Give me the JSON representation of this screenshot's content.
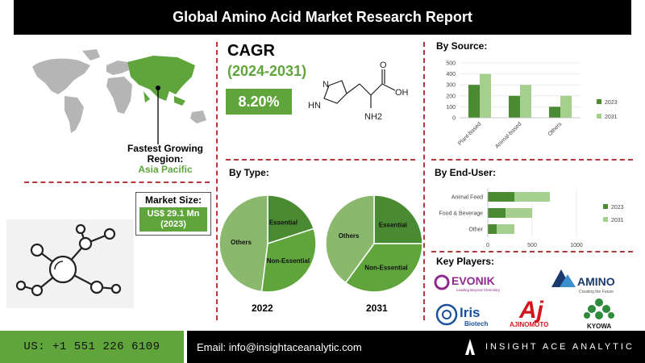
{
  "title": "Global Amino Acid Market Research Report",
  "region": {
    "label": "Fastest Growing Region:",
    "value": "Asia Pacific"
  },
  "market_size": {
    "label": "Market Size:",
    "value": "US$ 29.1 Mn (2023)"
  },
  "cagr": {
    "title": "CAGR",
    "period": "(2024-2031)",
    "value": "8.20%"
  },
  "molecule": {
    "nh": "HN",
    "n": "N",
    "oh": "OH",
    "o": "O",
    "nh2": "NH2"
  },
  "by_type": {
    "title": "By Type:",
    "years": [
      "2022",
      "2031"
    ],
    "labels": {
      "essential": "Essential",
      "non_essential": "Non-Essential",
      "others": "Others"
    }
  },
  "by_source": {
    "title": "By Source:",
    "categories": [
      "Plant-based",
      "Animal-based",
      "Others"
    ],
    "yticks": [
      "500",
      "400",
      "300",
      "200",
      "100",
      "0"
    ],
    "legend": [
      "2023",
      "2031"
    ]
  },
  "by_end_user": {
    "title": "By End-User:",
    "categories": [
      "Animal Feed",
      "Food & Beverage",
      "Other"
    ],
    "xticks": [
      "0",
      "500",
      "1000"
    ],
    "legend": [
      "2023",
      "2031"
    ]
  },
  "key_players": {
    "title": "Key Players:",
    "evonik": "EVONIK",
    "evonik_tag": "Leading Beyond Chemistry",
    "amino": "AMINO",
    "amino_tag": "Creating the Future",
    "iris": "Iris",
    "iris_sub": "Biotech",
    "ajinomoto": "AJINOMOTO",
    "kyowa": "KYOWA"
  },
  "footer": {
    "phone": "US: +1 551 226 6109",
    "email": "Email: info@insightaceanalytic.com",
    "brand": "INSIGHT ACE ANALYTIC"
  },
  "colors": {
    "accent": "#5fa53c",
    "dark_green": "#4a8a32",
    "light_green": "#a5cf8c",
    "pie_light": "#8ab96e",
    "divider": "#b33a3a"
  },
  "chart_data": [
    {
      "type": "bar",
      "title": "By Source:",
      "categories": [
        "Plant-based",
        "Animal-based",
        "Others"
      ],
      "series": [
        {
          "name": "2023",
          "values": [
            300,
            200,
            100
          ]
        },
        {
          "name": "2031",
          "values": [
            400,
            300,
            200
          ]
        }
      ],
      "ylim": [
        0,
        500
      ],
      "legend": "right"
    },
    {
      "type": "bar",
      "orientation": "horizontal",
      "stacked": true,
      "title": "By End-User:",
      "categories": [
        "Animal Feed",
        "Food & Beverage",
        "Other"
      ],
      "series": [
        {
          "name": "2023",
          "values": [
            300,
            200,
            100
          ]
        },
        {
          "name": "2031",
          "values": [
            400,
            300,
            200
          ]
        }
      ],
      "xlim": [
        0,
        1000
      ],
      "legend": "right"
    },
    {
      "type": "pie",
      "year": "2022",
      "labels": [
        "Essential",
        "Non-Essential",
        "Others"
      ],
      "values": [
        20,
        32,
        48
      ]
    },
    {
      "type": "pie",
      "year": "2031",
      "labels": [
        "Essential",
        "Non-Essential",
        "Others"
      ],
      "values": [
        25,
        35,
        40
      ]
    }
  ]
}
